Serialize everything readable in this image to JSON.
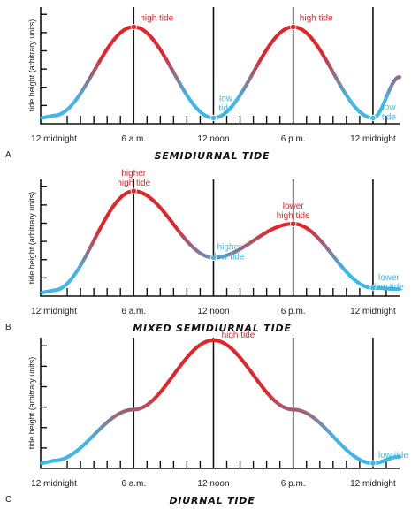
{
  "colors": {
    "high": "#e1262b",
    "low": "#3fb8e8",
    "axis": "#111111"
  },
  "chart_data": [
    {
      "type": "line",
      "panel_letter": "A",
      "title": "SEMIDIURNAL TIDE",
      "ylabel": "tide height (arbitrary units)",
      "x_tick_labels": [
        "12 midnight",
        "6 a.m.",
        "12 noon",
        "6 p.m.",
        "12 midnight"
      ],
      "x_tick_hours": [
        0,
        6,
        12,
        18,
        24
      ],
      "xlim": [
        -1,
        26
      ],
      "ylim": [
        0,
        10
      ],
      "x": [
        0,
        6,
        12,
        18,
        24,
        26
      ],
      "y": [
        0.7,
        8.3,
        0.5,
        8.3,
        0.5,
        4.0
      ],
      "annotations": [
        {
          "text": [
            "high tide"
          ],
          "x": 6,
          "y": 8.3,
          "kind": "high",
          "marker": true
        },
        {
          "text": [
            "low",
            "tide"
          ],
          "x": 12,
          "y": 0.5,
          "kind": "low",
          "marker": true
        },
        {
          "text": [
            "high tide"
          ],
          "x": 18,
          "y": 8.3,
          "kind": "high",
          "marker": true
        },
        {
          "text": [
            "low",
            "tide"
          ],
          "x": 24,
          "y": 0.5,
          "kind": "low",
          "marker": true
        }
      ]
    },
    {
      "type": "line",
      "panel_letter": "B",
      "title": "MIXED SEMIDIURNAL TIDE",
      "ylabel": "tide height (arbitrary units)",
      "x_tick_labels": [
        "12 midnight",
        "6 a.m.",
        "12 noon",
        "6 p.m.",
        "12 midnight"
      ],
      "x_tick_hours": [
        0,
        6,
        12,
        18,
        24
      ],
      "xlim": [
        -1,
        26
      ],
      "ylim": [
        0,
        10
      ],
      "x": [
        0,
        6,
        12,
        18,
        24,
        26
      ],
      "y": [
        0.5,
        9.0,
        3.3,
        6.2,
        0.7,
        0.6
      ],
      "annotations": [
        {
          "text": [
            "higher",
            "high tide"
          ],
          "x": 6,
          "y": 9.0,
          "kind": "high",
          "marker": true
        },
        {
          "text": [
            "higher",
            "low tide"
          ],
          "x": 12,
          "y": 3.3,
          "kind": "low",
          "marker": true
        },
        {
          "text": [
            "lower",
            "high tide"
          ],
          "x": 18,
          "y": 6.2,
          "kind": "high",
          "marker": true
        },
        {
          "text": [
            "lower",
            "low tide"
          ],
          "x": 24,
          "y": 0.7,
          "kind": "low",
          "marker": true
        }
      ]
    },
    {
      "type": "line",
      "panel_letter": "C",
      "title": "DIURNAL TIDE",
      "ylabel": "tide height (arbitrary units)",
      "x_tick_labels": [
        "12 midnight",
        "6 a.m.",
        "12 noon",
        "6 p.m.",
        "12 midnight"
      ],
      "x_tick_hours": [
        0,
        6,
        12,
        18,
        24
      ],
      "xlim": [
        -1,
        26
      ],
      "ylim": [
        0,
        10
      ],
      "x": [
        0,
        6,
        12,
        18,
        24,
        26
      ],
      "y": [
        0.6,
        4.5,
        9.8,
        4.5,
        0.4,
        0.9
      ],
      "annotations": [
        {
          "text": [
            "high tide"
          ],
          "x": 12,
          "y": 9.8,
          "kind": "high",
          "marker": false
        },
        {
          "text": [
            "low tide"
          ],
          "x": 24,
          "y": 0.4,
          "kind": "low",
          "marker": true
        }
      ]
    }
  ]
}
